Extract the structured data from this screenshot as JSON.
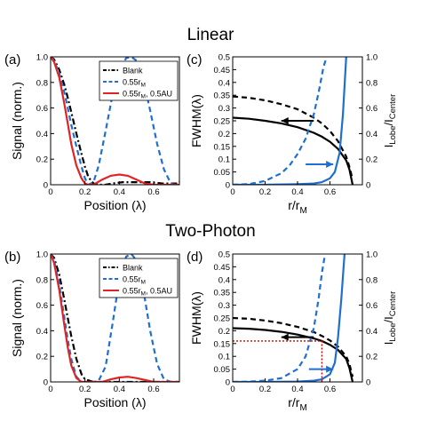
{
  "section_titles": {
    "top": "Linear",
    "bottom": "Two-Photon"
  },
  "colors": {
    "blank": "#000000",
    "r055": "#1f6fd1",
    "r055_au": "#e02424",
    "ratio": "#1f6fd1",
    "fwhm": "#000000",
    "guide": "#cc0000"
  },
  "chart_data": [
    {
      "id": "a",
      "panel_label": "(a)",
      "type": "line",
      "xlabel": "Position (λ)",
      "ylabel": "Signal (norm.)",
      "xlim": [
        0,
        0.75
      ],
      "ylim": [
        0,
        1.0
      ],
      "xticks": [
        "0",
        "0.2",
        "0.4",
        "0.6"
      ],
      "yticks": [
        "0",
        "0.2",
        "0.4",
        "0.6",
        "0.8",
        "1.0"
      ],
      "legend": {
        "placement": "top-right",
        "entries": [
          "Blank",
          "0.55rM",
          "0.55rM, 0.5AU"
        ]
      },
      "series": [
        {
          "name": "Blank",
          "style": "dash-dot",
          "color": "#000000",
          "x": [
            0,
            0.02,
            0.05,
            0.08,
            0.1,
            0.12,
            0.15,
            0.18,
            0.2,
            0.22,
            0.25,
            0.28,
            0.32,
            0.36,
            0.42,
            0.5,
            0.58,
            0.65,
            0.7,
            0.75
          ],
          "y": [
            1.0,
            0.98,
            0.9,
            0.78,
            0.68,
            0.57,
            0.4,
            0.24,
            0.14,
            0.06,
            0.01,
            0.0,
            0.0,
            0.01,
            0.02,
            0.02,
            0.02,
            0.01,
            0.01,
            0.01
          ]
        },
        {
          "name": "0.55rM",
          "style": "dashed",
          "color": "#1f6fd1",
          "x": [
            0,
            0.02,
            0.05,
            0.08,
            0.1,
            0.12,
            0.15,
            0.18,
            0.2,
            0.22,
            0.25,
            0.28,
            0.32,
            0.36,
            0.4,
            0.44,
            0.47,
            0.5,
            0.54,
            0.58,
            0.62,
            0.66,
            0.7,
            0.72,
            0.75
          ],
          "y": [
            1.0,
            0.97,
            0.87,
            0.72,
            0.6,
            0.47,
            0.3,
            0.14,
            0.05,
            0.0,
            0.02,
            0.15,
            0.42,
            0.7,
            0.9,
            0.99,
            1.0,
            0.97,
            0.82,
            0.58,
            0.32,
            0.12,
            0.01,
            0.0,
            0.02
          ]
        },
        {
          "name": "0.55rM, 0.5AU",
          "style": "solid",
          "color": "#e02424",
          "x": [
            0,
            0.02,
            0.05,
            0.08,
            0.1,
            0.12,
            0.15,
            0.18,
            0.2,
            0.22,
            0.25,
            0.3,
            0.35,
            0.4,
            0.45,
            0.5,
            0.55,
            0.6,
            0.65,
            0.7,
            0.75
          ],
          "y": [
            1.0,
            0.96,
            0.84,
            0.63,
            0.48,
            0.32,
            0.15,
            0.05,
            0.01,
            0.0,
            0.0,
            0.04,
            0.07,
            0.08,
            0.07,
            0.04,
            0.01,
            0.0,
            0.0,
            0.0,
            0.0
          ]
        }
      ]
    },
    {
      "id": "c",
      "panel_label": "(c)",
      "type": "line",
      "xlabel": "r/rM",
      "ylabel": "FWHM(λ)",
      "ylabel_right": "ILobe/ICenter",
      "xlim": [
        0,
        0.8
      ],
      "ylim": [
        0,
        0.5
      ],
      "ylim_right": [
        0,
        1.0
      ],
      "xticks": [
        "0",
        "0.2",
        "0.4",
        "0.6"
      ],
      "yticks": [
        "0",
        "0.05",
        "0.1",
        "0.15",
        "0.2",
        "0.25",
        "0.3",
        "0.35",
        "0.4",
        "0.45",
        "0.5"
      ],
      "yticks_right": [
        "0",
        "0.2",
        "0.4",
        "0.6",
        "0.8",
        "1.0"
      ],
      "series": [
        {
          "name": "FWHM (dashed)",
          "style": "dashed",
          "color": "#000000",
          "axis": "left",
          "x": [
            0,
            0.1,
            0.2,
            0.3,
            0.4,
            0.5,
            0.55,
            0.6,
            0.65,
            0.7,
            0.72,
            0.74
          ],
          "y": [
            0.345,
            0.34,
            0.33,
            0.315,
            0.295,
            0.262,
            0.24,
            0.21,
            0.17,
            0.11,
            0.07,
            0.02
          ]
        },
        {
          "name": "FWHM (solid)",
          "style": "solid",
          "color": "#000000",
          "axis": "left",
          "x": [
            0,
            0.1,
            0.2,
            0.3,
            0.4,
            0.5,
            0.55,
            0.6,
            0.65,
            0.7,
            0.72,
            0.74
          ],
          "y": [
            0.262,
            0.258,
            0.25,
            0.24,
            0.225,
            0.203,
            0.188,
            0.168,
            0.14,
            0.095,
            0.06,
            0.0
          ]
        },
        {
          "name": "Ratio (dashed)",
          "style": "dashed",
          "color": "#1f6fd1",
          "axis": "right",
          "x": [
            0,
            0.1,
            0.2,
            0.3,
            0.35,
            0.4,
            0.45,
            0.5,
            0.53,
            0.56,
            0.58
          ],
          "y": [
            0.0,
            0.005,
            0.03,
            0.09,
            0.15,
            0.24,
            0.36,
            0.55,
            0.72,
            0.92,
            1.0
          ]
        },
        {
          "name": "Ratio (solid)",
          "style": "solid",
          "color": "#1f6fd1",
          "axis": "right",
          "x": [
            0,
            0.2,
            0.4,
            0.5,
            0.55,
            0.6,
            0.63,
            0.66,
            0.68,
            0.7
          ],
          "y": [
            0.0,
            0.0,
            0.005,
            0.01,
            0.02,
            0.05,
            0.1,
            0.25,
            0.55,
            1.0
          ]
        }
      ],
      "arrows": [
        {
          "color": "#000000",
          "from": [
            0.5,
            0.25
          ],
          "to": [
            0.3,
            0.25
          ],
          "axis": "left"
        },
        {
          "color": "#1f6fd1",
          "from": [
            0.45,
            0.08
          ],
          "to": [
            0.62,
            0.08
          ],
          "axis": "left"
        }
      ]
    },
    {
      "id": "b",
      "panel_label": "(b)",
      "type": "line",
      "xlabel": "Position (λ)",
      "ylabel": "Signal (norm.)",
      "xlim": [
        0,
        0.75
      ],
      "ylim": [
        0,
        1.0
      ],
      "xticks": [
        "0",
        "0.2",
        "0.4",
        "0.6"
      ],
      "yticks": [
        "0",
        "0.2",
        "0.4",
        "0.6",
        "0.8",
        "1.0"
      ],
      "legend": {
        "placement": "top-right",
        "entries": [
          "Blank",
          "0.55rM",
          "0.55rM, 0.5AU"
        ]
      },
      "series": [
        {
          "name": "Blank",
          "style": "dash-dot",
          "color": "#000000",
          "x": [
            0,
            0.02,
            0.05,
            0.08,
            0.1,
            0.12,
            0.15,
            0.18,
            0.2,
            0.25,
            0.3,
            0.4,
            0.5,
            0.6,
            0.75
          ],
          "y": [
            1.0,
            0.97,
            0.84,
            0.64,
            0.5,
            0.36,
            0.18,
            0.06,
            0.02,
            0.0,
            0.0,
            0.0,
            0.0,
            0.0,
            0.0
          ]
        },
        {
          "name": "0.55rM",
          "style": "dashed",
          "color": "#1f6fd1",
          "x": [
            0,
            0.02,
            0.05,
            0.08,
            0.1,
            0.12,
            0.15,
            0.18,
            0.2,
            0.25,
            0.28,
            0.32,
            0.36,
            0.4,
            0.44,
            0.47,
            0.5,
            0.54,
            0.58,
            0.62,
            0.66,
            0.7,
            0.75
          ],
          "y": [
            1.0,
            0.95,
            0.76,
            0.5,
            0.33,
            0.18,
            0.04,
            0.0,
            0.0,
            0.0,
            0.01,
            0.12,
            0.45,
            0.8,
            0.98,
            1.0,
            0.95,
            0.72,
            0.4,
            0.14,
            0.02,
            0.0,
            0.0
          ]
        },
        {
          "name": "0.55rM, 0.5AU",
          "style": "solid",
          "color": "#e02424",
          "x": [
            0,
            0.02,
            0.05,
            0.08,
            0.1,
            0.12,
            0.15,
            0.18,
            0.2,
            0.25,
            0.3,
            0.35,
            0.4,
            0.45,
            0.5,
            0.55,
            0.6,
            0.65,
            0.75
          ],
          "y": [
            1.0,
            0.93,
            0.72,
            0.44,
            0.27,
            0.13,
            0.03,
            0.0,
            0.0,
            0.0,
            0.0,
            0.02,
            0.035,
            0.04,
            0.03,
            0.015,
            0.0,
            0.0,
            0.0
          ]
        }
      ]
    },
    {
      "id": "d",
      "panel_label": "(d)",
      "type": "line",
      "xlabel": "r/rM",
      "ylabel": "FWHM(λ)",
      "ylabel_right": "ILobe/ICenter",
      "xlim": [
        0,
        0.8
      ],
      "ylim": [
        0,
        0.5
      ],
      "ylim_right": [
        0,
        1.0
      ],
      "xticks": [
        "0",
        "0.2",
        "0.4",
        "0.6"
      ],
      "yticks": [
        "0",
        "0.05",
        "0.1",
        "0.15",
        "0.2",
        "0.25",
        "0.3",
        "0.35",
        "0.4",
        "0.45",
        "0.5"
      ],
      "yticks_right": [
        "0",
        "0.2",
        "0.4",
        "0.6",
        "0.8",
        "1.0"
      ],
      "series": [
        {
          "name": "FWHM (dashed)",
          "style": "dashed",
          "color": "#000000",
          "axis": "left",
          "x": [
            0,
            0.1,
            0.2,
            0.3,
            0.4,
            0.5,
            0.55,
            0.6,
            0.65,
            0.7,
            0.72,
            0.74
          ],
          "y": [
            0.25,
            0.247,
            0.24,
            0.23,
            0.215,
            0.195,
            0.18,
            0.162,
            0.138,
            0.1,
            0.07,
            0.02
          ]
        },
        {
          "name": "FWHM (solid)",
          "style": "solid",
          "color": "#000000",
          "axis": "left",
          "x": [
            0,
            0.1,
            0.2,
            0.3,
            0.4,
            0.5,
            0.55,
            0.6,
            0.65,
            0.7,
            0.72,
            0.74
          ],
          "y": [
            0.21,
            0.208,
            0.203,
            0.196,
            0.185,
            0.17,
            0.16,
            0.145,
            0.125,
            0.09,
            0.055,
            0.0
          ]
        },
        {
          "name": "Ratio (dashed)",
          "style": "dashed",
          "color": "#1f6fd1",
          "axis": "right",
          "x": [
            0,
            0.1,
            0.2,
            0.3,
            0.4,
            0.45,
            0.5,
            0.53,
            0.55,
            0.57
          ],
          "y": [
            0.0,
            0.002,
            0.01,
            0.03,
            0.1,
            0.2,
            0.42,
            0.65,
            0.85,
            1.0
          ]
        },
        {
          "name": "Ratio (solid)",
          "style": "solid",
          "color": "#1f6fd1",
          "axis": "right",
          "x": [
            0,
            0.2,
            0.4,
            0.5,
            0.55,
            0.6,
            0.63,
            0.65,
            0.67,
            0.69
          ],
          "y": [
            0.0,
            0.0,
            0.003,
            0.01,
            0.02,
            0.06,
            0.15,
            0.35,
            0.65,
            1.0
          ]
        }
      ],
      "arrows": [
        {
          "color": "#000000",
          "from": [
            0.5,
            0.175
          ],
          "to": [
            0.3,
            0.175
          ],
          "axis": "left"
        },
        {
          "color": "#1f6fd1",
          "from": [
            0.47,
            0.05
          ],
          "to": [
            0.62,
            0.05
          ],
          "axis": "left"
        }
      ],
      "guides": [
        {
          "color": "#cc0000",
          "style": "dotted",
          "points": [
            [
              0,
              0.16
            ],
            [
              0.55,
              0.16
            ],
            [
              0.55,
              0.0
            ]
          ]
        }
      ]
    }
  ]
}
